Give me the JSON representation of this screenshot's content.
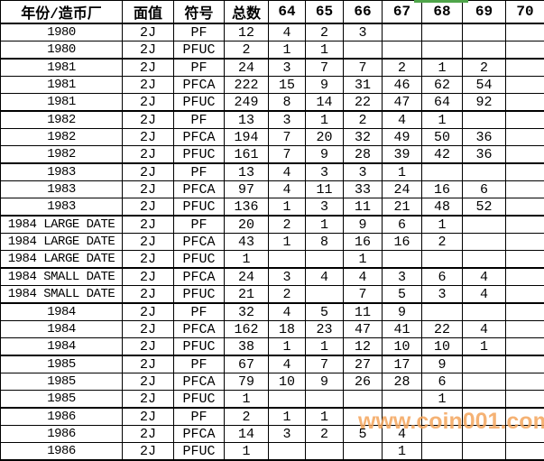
{
  "watermark": {
    "text": "www.coin001.com",
    "color": "#f4a55c"
  },
  "selection_indicator": {
    "column": "68",
    "color": "#4fa54a"
  },
  "table": {
    "columns": [
      "年份/造币厂",
      "面值",
      "符号",
      "总数",
      "64",
      "65",
      "66",
      "67",
      "68",
      "69",
      "70"
    ],
    "rows": [
      [
        "1980",
        "2J",
        "PF",
        "12",
        "4",
        "2",
        "3",
        "",
        "",
        "",
        ""
      ],
      [
        "1980",
        "2J",
        "PFUC",
        "2",
        "1",
        "1",
        "",
        "",
        "",
        "",
        ""
      ],
      [
        "1981",
        "2J",
        "PF",
        "24",
        "3",
        "7",
        "7",
        "2",
        "1",
        "2",
        ""
      ],
      [
        "1981",
        "2J",
        "PFCA",
        "222",
        "15",
        "9",
        "31",
        "46",
        "62",
        "54",
        ""
      ],
      [
        "1981",
        "2J",
        "PFUC",
        "249",
        "8",
        "14",
        "22",
        "47",
        "64",
        "92",
        ""
      ],
      [
        "1982",
        "2J",
        "PF",
        "13",
        "3",
        "1",
        "2",
        "4",
        "1",
        "",
        ""
      ],
      [
        "1982",
        "2J",
        "PFCA",
        "194",
        "7",
        "20",
        "32",
        "49",
        "50",
        "36",
        ""
      ],
      [
        "1982",
        "2J",
        "PFUC",
        "161",
        "7",
        "9",
        "28",
        "39",
        "42",
        "36",
        ""
      ],
      [
        "1983",
        "2J",
        "PF",
        "13",
        "4",
        "3",
        "3",
        "1",
        "",
        "",
        ""
      ],
      [
        "1983",
        "2J",
        "PFCA",
        "97",
        "4",
        "11",
        "33",
        "24",
        "16",
        "6",
        ""
      ],
      [
        "1983",
        "2J",
        "PFUC",
        "136",
        "1",
        "3",
        "11",
        "21",
        "48",
        "52",
        ""
      ],
      [
        "1984 LARGE DATE",
        "2J",
        "PF",
        "20",
        "2",
        "1",
        "9",
        "6",
        "1",
        "",
        ""
      ],
      [
        "1984 LARGE DATE",
        "2J",
        "PFCA",
        "43",
        "1",
        "8",
        "16",
        "16",
        "2",
        "",
        ""
      ],
      [
        "1984 LARGE DATE",
        "2J",
        "PFUC",
        "1",
        "",
        "",
        "1",
        "",
        "",
        "",
        ""
      ],
      [
        "1984 SMALL DATE",
        "2J",
        "PFCA",
        "24",
        "3",
        "4",
        "4",
        "3",
        "6",
        "4",
        ""
      ],
      [
        "1984 SMALL DATE",
        "2J",
        "PFUC",
        "21",
        "2",
        "",
        "7",
        "5",
        "3",
        "4",
        ""
      ],
      [
        "1984",
        "2J",
        "PF",
        "32",
        "4",
        "5",
        "11",
        "9",
        "",
        "",
        ""
      ],
      [
        "1984",
        "2J",
        "PFCA",
        "162",
        "18",
        "23",
        "47",
        "41",
        "22",
        "4",
        ""
      ],
      [
        "1984",
        "2J",
        "PFUC",
        "38",
        "1",
        "1",
        "12",
        "10",
        "10",
        "1",
        ""
      ],
      [
        "1985",
        "2J",
        "PF",
        "67",
        "4",
        "7",
        "27",
        "17",
        "9",
        "",
        ""
      ],
      [
        "1985",
        "2J",
        "PFCA",
        "79",
        "10",
        "9",
        "26",
        "28",
        "6",
        "",
        ""
      ],
      [
        "1985",
        "2J",
        "PFUC",
        "1",
        "",
        "",
        "",
        "",
        "1",
        "",
        ""
      ],
      [
        "1986",
        "2J",
        "PF",
        "2",
        "1",
        "1",
        "",
        "",
        "",
        "",
        ""
      ],
      [
        "1986",
        "2J",
        "PFCA",
        "14",
        "3",
        "2",
        "5",
        "4",
        "",
        "",
        ""
      ],
      [
        "1986",
        "2J",
        "PFUC",
        "1",
        "",
        "",
        "",
        "1",
        "",
        "",
        ""
      ]
    ]
  }
}
